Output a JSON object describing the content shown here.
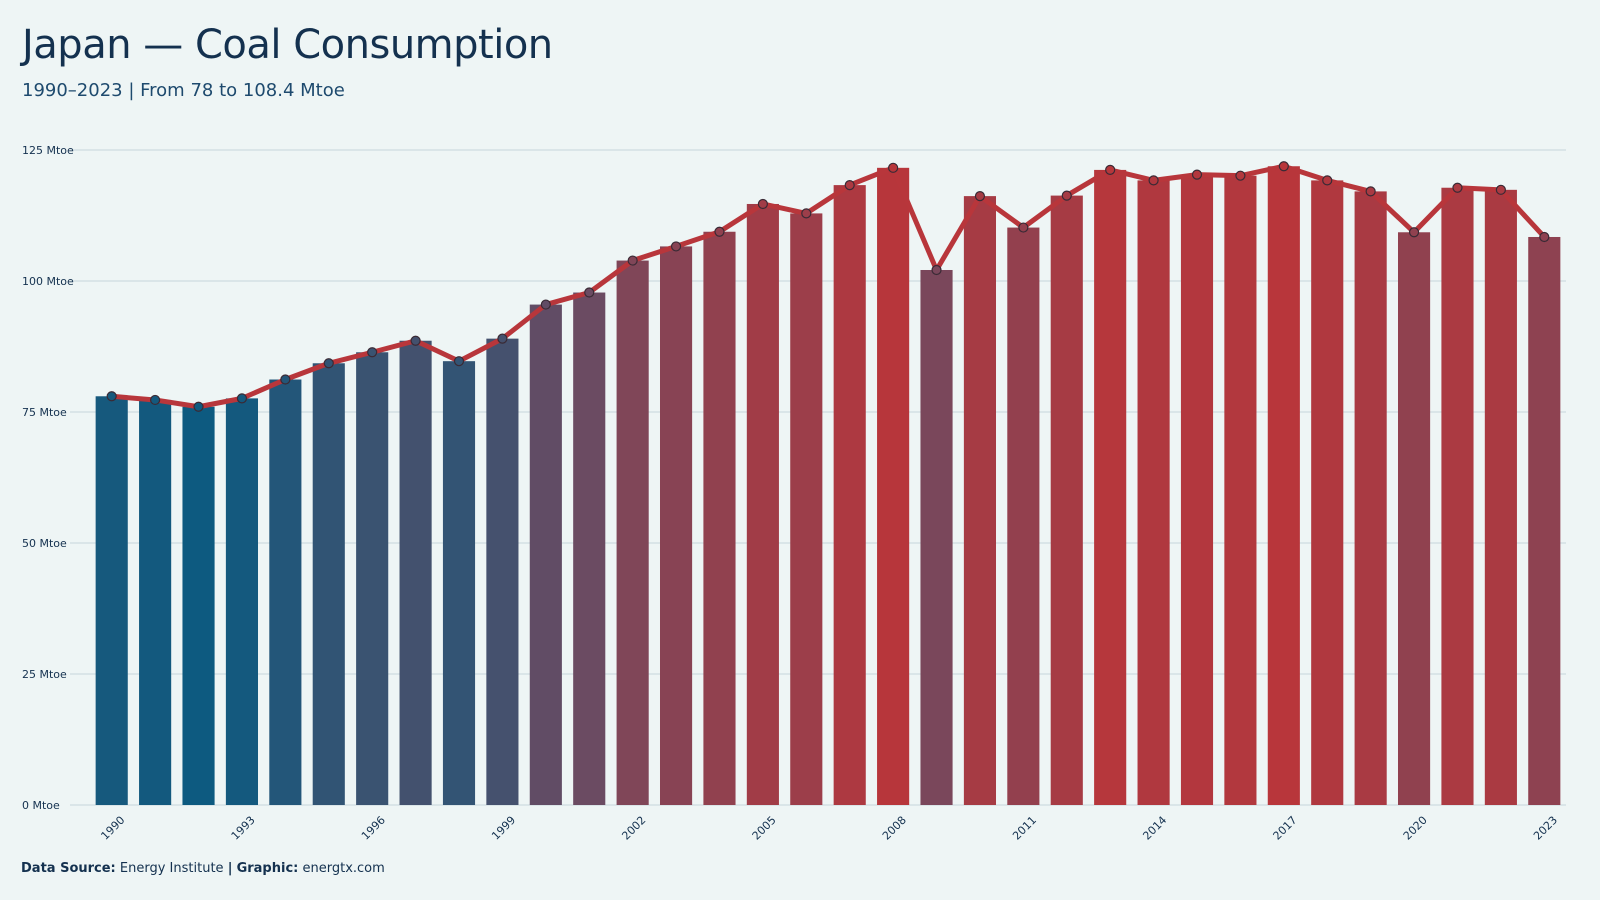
{
  "header": {
    "title": "Japan — Coal Consumption",
    "subtitle": "1990–2023 | From 78 to 108.4 Mtoe"
  },
  "footer": {
    "source_label": "Data Source:",
    "source_value": "Energy Institute",
    "separator": "|",
    "graphic_label": "Graphic:",
    "graphic_value": "energtx.com"
  },
  "colors": {
    "background": "#eef5f5",
    "line": "#b8363b",
    "low_bar": "#0d5a80",
    "high_bar": "#b8363b",
    "grid": "#d3e0e3",
    "text": "#14314f"
  },
  "chart_data": {
    "type": "bar",
    "title": "Japan — Coal Consumption",
    "subtitle": "1990–2023 | From 78 to 108.4 Mtoe",
    "xlabel": "",
    "ylabel": "",
    "unit": "Mtoe",
    "ylim": [
      0,
      125
    ],
    "yticks": [
      0,
      25,
      50,
      75,
      100,
      125
    ],
    "ytick_labels": [
      "0 Mtoe",
      "25 Mtoe",
      "50 Mtoe",
      "75 Mtoe",
      "100 Mtoe",
      "125 Mtoe"
    ],
    "xtick_labels": [
      "1990",
      "1993",
      "1996",
      "1999",
      "2002",
      "2005",
      "2008",
      "2011",
      "2014",
      "2017",
      "2020",
      "2023"
    ],
    "grid": true,
    "overlay": "line with markers",
    "categories": [
      "1990",
      "1991",
      "1992",
      "1993",
      "1994",
      "1995",
      "1996",
      "1997",
      "1998",
      "1999",
      "2000",
      "2001",
      "2002",
      "2003",
      "2004",
      "2005",
      "2006",
      "2007",
      "2008",
      "2009",
      "2010",
      "2011",
      "2012",
      "2013",
      "2014",
      "2015",
      "2016",
      "2017",
      "2018",
      "2019",
      "2020",
      "2021",
      "2022",
      "2023"
    ],
    "values": [
      78.0,
      77.3,
      76.0,
      77.6,
      81.2,
      84.3,
      86.4,
      88.6,
      84.7,
      89.0,
      95.5,
      97.8,
      103.9,
      106.6,
      109.4,
      114.7,
      112.9,
      118.3,
      121.6,
      102.1,
      116.2,
      110.2,
      116.3,
      121.2,
      119.2,
      120.3,
      120.1,
      121.9,
      119.2,
      117.1,
      109.3,
      117.8,
      117.4,
      108.4
    ]
  }
}
